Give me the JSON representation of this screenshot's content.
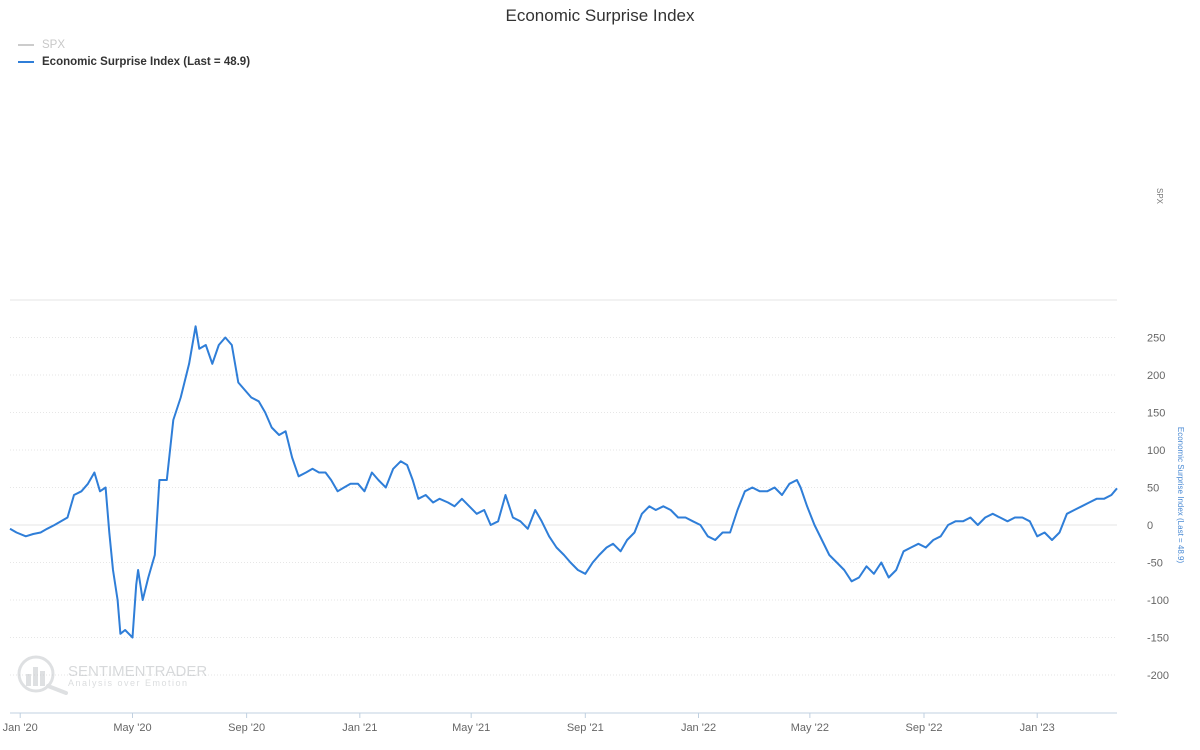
{
  "chart_data": {
    "type": "line",
    "title": "Economic Surprise Index",
    "legend": [
      {
        "name": "SPX",
        "visible": false,
        "color": "#cccccc"
      },
      {
        "name": "Economic Surprise Index (Last = 48.9)",
        "visible": true,
        "color": "#2f7ed8"
      }
    ],
    "legend_placement": "top-left",
    "y_axis": {
      "title": "Economic Surprise Index (Last = 48.9)",
      "ticks": [
        250,
        200,
        150,
        100,
        50,
        0,
        -50,
        -100,
        -150,
        -200
      ],
      "range": [
        -200,
        300
      ],
      "side": "right"
    },
    "secondary_y_axis": {
      "title": "SPX"
    },
    "x_axis": {
      "ticks": [
        "Jan '20",
        "May '20",
        "Sep '20",
        "Jan '21",
        "May '21",
        "Sep '21",
        "Jan '22",
        "May '22",
        "Sep '22",
        "Jan '23"
      ],
      "tick_dates": [
        "2020-01-01",
        "2020-05-01",
        "2020-09-01",
        "2021-01-01",
        "2021-05-01",
        "2021-09-01",
        "2022-01-01",
        "2022-05-01",
        "2022-09-01",
        "2023-01-01"
      ],
      "range": [
        "2019-12-21",
        "2023-03-28"
      ]
    },
    "grid": true,
    "series": [
      {
        "name": "Economic Surprise Index (Last = 48.9)",
        "color": "#2f7ed8",
        "points": [
          [
            "2019-12-21",
            -5
          ],
          [
            "2019-12-28",
            -10
          ],
          [
            "2020-01-07",
            -15
          ],
          [
            "2020-01-15",
            -12
          ],
          [
            "2020-01-23",
            -10
          ],
          [
            "2020-01-30",
            -5
          ],
          [
            "2020-02-07",
            0
          ],
          [
            "2020-02-14",
            5
          ],
          [
            "2020-02-21",
            10
          ],
          [
            "2020-02-28",
            40
          ],
          [
            "2020-03-07",
            45
          ],
          [
            "2020-03-14",
            55
          ],
          [
            "2020-03-21",
            70
          ],
          [
            "2020-03-27",
            45
          ],
          [
            "2020-04-02",
            50
          ],
          [
            "2020-04-06",
            -10
          ],
          [
            "2020-04-10",
            -60
          ],
          [
            "2020-04-15",
            -100
          ],
          [
            "2020-04-18",
            -145
          ],
          [
            "2020-04-23",
            -140
          ],
          [
            "2020-05-01",
            -150
          ],
          [
            "2020-05-05",
            -80
          ],
          [
            "2020-05-07",
            -60
          ],
          [
            "2020-05-12",
            -100
          ],
          [
            "2020-05-18",
            -70
          ],
          [
            "2020-05-25",
            -40
          ],
          [
            "2020-05-30",
            60
          ],
          [
            "2020-06-07",
            60
          ],
          [
            "2020-06-14",
            140
          ],
          [
            "2020-06-22",
            170
          ],
          [
            "2020-07-01",
            215
          ],
          [
            "2020-07-08",
            265
          ],
          [
            "2020-07-12",
            235
          ],
          [
            "2020-07-19",
            240
          ],
          [
            "2020-07-26",
            215
          ],
          [
            "2020-08-02",
            240
          ],
          [
            "2020-08-09",
            250
          ],
          [
            "2020-08-16",
            240
          ],
          [
            "2020-08-23",
            190
          ],
          [
            "2020-08-30",
            180
          ],
          [
            "2020-09-06",
            170
          ],
          [
            "2020-09-14",
            165
          ],
          [
            "2020-09-21",
            150
          ],
          [
            "2020-09-28",
            130
          ],
          [
            "2020-10-06",
            120
          ],
          [
            "2020-10-13",
            125
          ],
          [
            "2020-10-20",
            90
          ],
          [
            "2020-10-27",
            65
          ],
          [
            "2020-11-04",
            70
          ],
          [
            "2020-11-11",
            75
          ],
          [
            "2020-11-18",
            70
          ],
          [
            "2020-11-25",
            70
          ],
          [
            "2020-12-01",
            60
          ],
          [
            "2020-12-08",
            45
          ],
          [
            "2020-12-15",
            50
          ],
          [
            "2020-12-22",
            55
          ],
          [
            "2020-12-30",
            55
          ],
          [
            "2021-01-06",
            45
          ],
          [
            "2021-01-14",
            70
          ],
          [
            "2021-01-21",
            60
          ],
          [
            "2021-01-29",
            50
          ],
          [
            "2021-02-06",
            75
          ],
          [
            "2021-02-14",
            85
          ],
          [
            "2021-02-21",
            80
          ],
          [
            "2021-02-27",
            60
          ],
          [
            "2021-03-05",
            35
          ],
          [
            "2021-03-13",
            40
          ],
          [
            "2021-03-21",
            30
          ],
          [
            "2021-03-28",
            35
          ],
          [
            "2021-04-06",
            30
          ],
          [
            "2021-04-13",
            25
          ],
          [
            "2021-04-21",
            35
          ],
          [
            "2021-04-29",
            25
          ],
          [
            "2021-05-07",
            15
          ],
          [
            "2021-05-15",
            20
          ],
          [
            "2021-05-22",
            0
          ],
          [
            "2021-05-30",
            5
          ],
          [
            "2021-06-07",
            40
          ],
          [
            "2021-06-15",
            10
          ],
          [
            "2021-06-23",
            5
          ],
          [
            "2021-07-01",
            -5
          ],
          [
            "2021-07-09",
            20
          ],
          [
            "2021-07-16",
            5
          ],
          [
            "2021-07-24",
            -15
          ],
          [
            "2021-08-01",
            -30
          ],
          [
            "2021-08-09",
            -40
          ],
          [
            "2021-08-16",
            -50
          ],
          [
            "2021-08-24",
            -60
          ],
          [
            "2021-09-01",
            -65
          ],
          [
            "2021-09-09",
            -50
          ],
          [
            "2021-09-16",
            -40
          ],
          [
            "2021-09-24",
            -30
          ],
          [
            "2021-10-01",
            -25
          ],
          [
            "2021-10-09",
            -35
          ],
          [
            "2021-10-16",
            -20
          ],
          [
            "2021-10-24",
            -10
          ],
          [
            "2021-11-01",
            15
          ],
          [
            "2021-11-09",
            25
          ],
          [
            "2021-11-16",
            20
          ],
          [
            "2021-11-24",
            25
          ],
          [
            "2021-12-02",
            20
          ],
          [
            "2021-12-10",
            10
          ],
          [
            "2021-12-18",
            10
          ],
          [
            "2021-12-26",
            5
          ],
          [
            "2022-01-03",
            0
          ],
          [
            "2022-01-11",
            -15
          ],
          [
            "2022-01-19",
            -20
          ],
          [
            "2022-01-27",
            -10
          ],
          [
            "2022-02-04",
            -10
          ],
          [
            "2022-02-12",
            20
          ],
          [
            "2022-02-20",
            45
          ],
          [
            "2022-02-28",
            50
          ],
          [
            "2022-03-08",
            45
          ],
          [
            "2022-03-16",
            45
          ],
          [
            "2022-03-24",
            50
          ],
          [
            "2022-04-01",
            40
          ],
          [
            "2022-04-09",
            55
          ],
          [
            "2022-04-17",
            60
          ],
          [
            "2022-04-21",
            50
          ],
          [
            "2022-04-28",
            25
          ],
          [
            "2022-05-06",
            0
          ],
          [
            "2022-05-14",
            -20
          ],
          [
            "2022-05-22",
            -40
          ],
          [
            "2022-05-30",
            -50
          ],
          [
            "2022-06-07",
            -60
          ],
          [
            "2022-06-15",
            -75
          ],
          [
            "2022-06-23",
            -70
          ],
          [
            "2022-07-01",
            -55
          ],
          [
            "2022-07-09",
            -65
          ],
          [
            "2022-07-17",
            -50
          ],
          [
            "2022-07-25",
            -70
          ],
          [
            "2022-08-02",
            -60
          ],
          [
            "2022-08-10",
            -35
          ],
          [
            "2022-08-18",
            -30
          ],
          [
            "2022-08-26",
            -25
          ],
          [
            "2022-09-03",
            -30
          ],
          [
            "2022-09-11",
            -20
          ],
          [
            "2022-09-19",
            -15
          ],
          [
            "2022-09-27",
            0
          ],
          [
            "2022-10-05",
            5
          ],
          [
            "2022-10-13",
            5
          ],
          [
            "2022-10-21",
            10
          ],
          [
            "2022-10-29",
            0
          ],
          [
            "2022-11-06",
            10
          ],
          [
            "2022-11-14",
            15
          ],
          [
            "2022-11-22",
            10
          ],
          [
            "2022-11-30",
            5
          ],
          [
            "2022-12-08",
            10
          ],
          [
            "2022-12-16",
            10
          ],
          [
            "2022-12-24",
            5
          ],
          [
            "2023-01-01",
            -15
          ],
          [
            "2023-01-09",
            -10
          ],
          [
            "2023-01-17",
            -20
          ],
          [
            "2023-01-25",
            -10
          ],
          [
            "2023-02-02",
            15
          ],
          [
            "2023-02-10",
            20
          ],
          [
            "2023-02-18",
            25
          ],
          [
            "2023-02-26",
            30
          ],
          [
            "2023-03-06",
            35
          ],
          [
            "2023-03-14",
            35
          ],
          [
            "2023-03-22",
            40
          ],
          [
            "2023-03-28",
            48.9
          ]
        ]
      }
    ]
  },
  "watermark": {
    "brand": "SENTIMENTRADER",
    "tagline": "Analysis over Emotion"
  }
}
